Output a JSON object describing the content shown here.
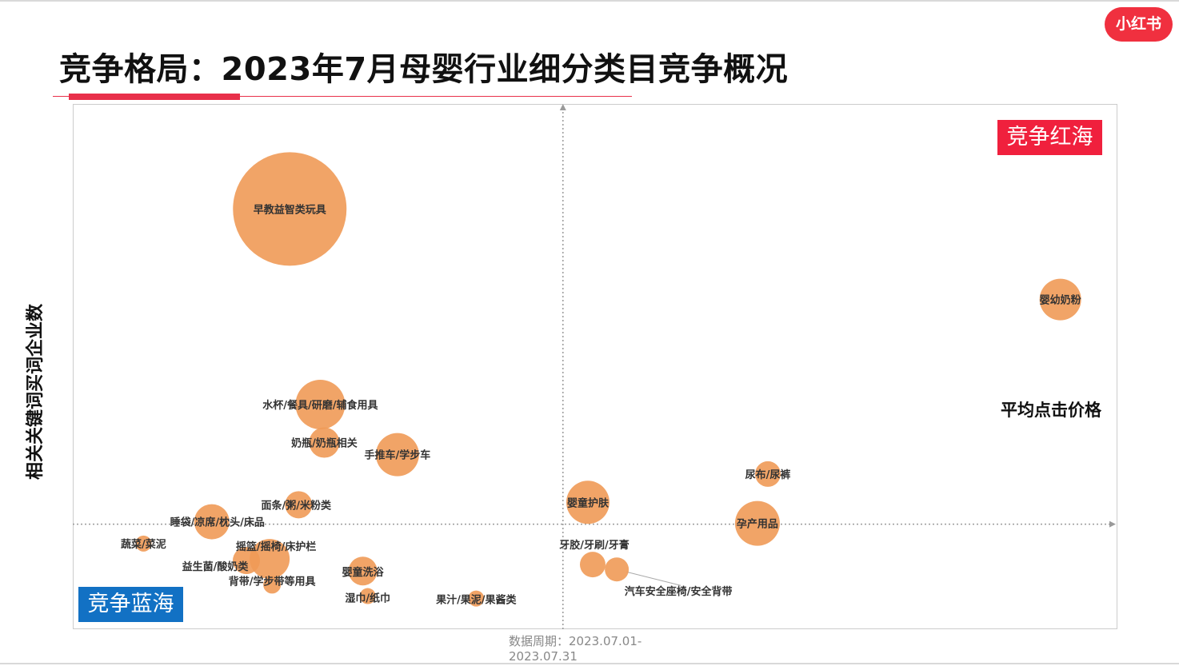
{
  "brand": {
    "logo_text": "小红书"
  },
  "header": {
    "title": "竞争格局：2023年7月母婴行业细分类目竞争概况"
  },
  "footer": {
    "period": "数据周期：2023.07.01-\n2023.07.31"
  },
  "colors": {
    "bubble": "#ef9a57",
    "red_sea": "#f0203d",
    "blue_sea": "#1271c4",
    "accent": "#e8304a"
  },
  "chart_data": {
    "type": "scatter",
    "variant": "bubble",
    "xlabel": "平均点击价格",
    "ylabel": "相关关键词买词企业数",
    "quadrant_labels": {
      "top_right": "竞争红海",
      "bottom_left": "竞争蓝海"
    },
    "reference_lines": {
      "style": "dotted",
      "x": 0,
      "y": 0
    },
    "axes_ticks_shown": false,
    "xlim": [
      -0.61,
      0.69
    ],
    "ylim": [
      -0.13,
      0.52
    ],
    "grid": false,
    "points": [
      {
        "name": "早教益智类玩具",
        "x": -0.34,
        "y": 0.39,
        "size": 71,
        "label_dx": 0,
        "label_dy": 0
      },
      {
        "name": "婴幼奶粉",
        "x": 0.619,
        "y": 0.278,
        "size": 26,
        "label_dx": 0,
        "label_dy": 0
      },
      {
        "name": "水杯/餐具/研磨/辅食用具",
        "x": -0.302,
        "y": 0.148,
        "size": 31,
        "label_dx": 0,
        "label_dy": 0
      },
      {
        "name": "奶瓶/奶瓶相关",
        "x": -0.297,
        "y": 0.101,
        "size": 19,
        "label_dx": 0,
        "label_dy": 0
      },
      {
        "name": "手推车/学步车",
        "x": -0.206,
        "y": 0.086,
        "size": 27,
        "label_dx": 0,
        "label_dy": 0
      },
      {
        "name": "面条/粥/米粉类",
        "x": -0.329,
        "y": 0.024,
        "size": 17,
        "label_dx": 0,
        "label_dy": 0
      },
      {
        "name": "睡袋/凉席/枕头/床品",
        "x": -0.437,
        "y": 0.003,
        "size": 22,
        "label_dx": 0,
        "label_dy": 0
      },
      {
        "name": "蔬菜/菜泥",
        "x": -0.522,
        "y": -0.024,
        "size": 10,
        "label_dx": 0,
        "label_dy": 0
      },
      {
        "name": "摇篮/摇椅/床护栏",
        "x": -0.365,
        "y": -0.043,
        "size": 25,
        "label_dx": 0,
        "label_dy": 0
      },
      {
        "name": "益生菌/酸奶类",
        "x": -0.394,
        "y": -0.045,
        "size": 17,
        "label_dx": 0,
        "label_dy": 0
      },
      {
        "name": "背带/学步带等用具",
        "x": -0.362,
        "y": -0.075,
        "size": 11,
        "label_dx": 0,
        "label_dy": 0
      },
      {
        "name": "婴童洗浴",
        "x": -0.249,
        "y": -0.058,
        "size": 18,
        "label_dx": 0,
        "label_dy": 0
      },
      {
        "name": "湿巾/纸巾",
        "x": -0.243,
        "y": -0.089,
        "size": 10,
        "label_dx": 0,
        "label_dy": 0
      },
      {
        "name": "果汁/果泥/果酱类",
        "x": -0.108,
        "y": -0.092,
        "size": 10,
        "label_dx": 0,
        "label_dy": 0
      },
      {
        "name": "婴童护肤",
        "x": 0.031,
        "y": 0.027,
        "size": 27,
        "label_dx": 0,
        "label_dy": 0
      },
      {
        "name": "牙胶/牙刷/牙膏",
        "x": 0.037,
        "y": -0.05,
        "size": 16,
        "label_dx": 0,
        "label_dy": 0
      },
      {
        "name": "汽车安全座椅/安全背带",
        "x": 0.067,
        "y": -0.056,
        "size": 15,
        "label_dx": 0,
        "label_dy": 0
      },
      {
        "name": "尿布/尿裤",
        "x": 0.255,
        "y": 0.062,
        "size": 16,
        "label_dx": 0,
        "label_dy": 0
      },
      {
        "name": "孕产用品",
        "x": 0.242,
        "y": 0.001,
        "size": 28,
        "label_dx": 0,
        "label_dy": 0
      }
    ]
  }
}
